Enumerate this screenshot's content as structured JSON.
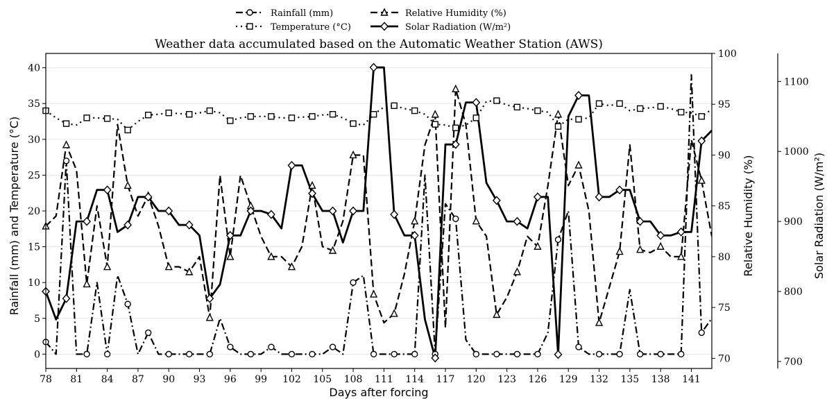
{
  "chart_data": {
    "type": "line",
    "title": "Weather data accumulated based on the Automatic Weather Station (AWS)",
    "xlabel": "Days after forcing",
    "ylabel_left": "Rainfall (mm) and Temperature (°C)",
    "ylabel_right1": "Relative Humidity (%)",
    "ylabel_right2": "Solar Radiation (W/m²)",
    "xlim": [
      78,
      143
    ],
    "x_ticks": [
      78,
      81,
      84,
      87,
      90,
      93,
      96,
      99,
      102,
      105,
      108,
      111,
      114,
      117,
      120,
      123,
      126,
      129,
      132,
      135,
      138,
      141
    ],
    "ylim_left": [
      -2,
      42
    ],
    "y_ticks_left": [
      0,
      5,
      10,
      15,
      20,
      25,
      30,
      35,
      40
    ],
    "ylim_rh": [
      69,
      100
    ],
    "y_ticks_rh": [
      70,
      75,
      80,
      85,
      90,
      95,
      100
    ],
    "ylim_sr": [
      690,
      1140
    ],
    "y_ticks_sr": [
      700,
      800,
      900,
      1000,
      1100
    ],
    "grid": "horizontal",
    "legend_position": "top-center",
    "series": [
      {
        "name": "Rainfall (mm)",
        "axis": "left",
        "style": "dashdot",
        "marker": "circle",
        "x": [
          78,
          79,
          80,
          81,
          82,
          83,
          84,
          85,
          86,
          87,
          88,
          89,
          90,
          91,
          92,
          93,
          94,
          95,
          96,
          97,
          98,
          99,
          100,
          101,
          102,
          103,
          104,
          105,
          106,
          107,
          108,
          109,
          110,
          111,
          112,
          113,
          114,
          115,
          116,
          117,
          118,
          119,
          120,
          121,
          122,
          123,
          124,
          125,
          126,
          127,
          128,
          129,
          130,
          131,
          132,
          133,
          134,
          135,
          136,
          137,
          138,
          139,
          140,
          141,
          142,
          143
        ],
        "values": [
          1.7,
          0,
          27,
          0,
          0,
          10,
          0,
          11,
          7,
          0,
          3,
          0,
          0,
          0,
          0,
          0,
          0,
          5,
          1,
          0,
          0,
          0,
          1,
          0,
          0,
          0,
          0,
          0,
          1,
          0,
          10,
          11,
          0,
          0,
          0,
          0,
          0,
          25,
          0,
          21,
          18.9,
          2,
          0,
          0,
          0,
          0,
          0,
          0,
          0,
          3,
          16,
          20,
          1,
          0,
          0,
          0,
          0,
          9,
          0,
          0,
          0,
          0,
          0,
          39,
          3,
          5
        ]
      },
      {
        "name": "Temperature (°C)",
        "axis": "left",
        "style": "dotted",
        "marker": "square",
        "x": [
          78,
          79,
          80,
          81,
          82,
          83,
          84,
          85,
          86,
          87,
          88,
          89,
          90,
          91,
          92,
          93,
          94,
          95,
          96,
          97,
          98,
          99,
          100,
          101,
          102,
          103,
          104,
          105,
          106,
          107,
          108,
          109,
          110,
          111,
          112,
          113,
          114,
          115,
          116,
          117,
          118,
          119,
          120,
          121,
          122,
          123,
          124,
          125,
          126,
          127,
          128,
          129,
          130,
          131,
          132,
          133,
          134,
          135,
          136,
          137,
          138,
          139,
          140,
          141,
          142,
          143
        ],
        "values": [
          34,
          33,
          32.2,
          32,
          33,
          33,
          32.9,
          32.8,
          31.3,
          32.5,
          33.4,
          33.5,
          33.7,
          33.6,
          33.5,
          33.7,
          34,
          33.7,
          32.6,
          33,
          33.2,
          33.2,
          33.2,
          33,
          33,
          33.1,
          33.2,
          33.4,
          33.5,
          33,
          32.2,
          32,
          33.5,
          34.5,
          34.7,
          34.3,
          34,
          33.5,
          32.1,
          32,
          31.6,
          32,
          33,
          35.3,
          35.4,
          34.8,
          34.5,
          34.3,
          34,
          33.8,
          31.8,
          32.8,
          32.8,
          33,
          35,
          34.7,
          35,
          34,
          34.3,
          34.4,
          34.6,
          34.3,
          33.8,
          33.7,
          33.2,
          34.2
        ]
      },
      {
        "name": "Relative Humidity (%)",
        "axis": "rh",
        "style": "dashed",
        "marker": "triangle",
        "x": [
          78,
          79,
          80,
          81,
          82,
          83,
          84,
          85,
          86,
          87,
          88,
          89,
          90,
          91,
          92,
          93,
          94,
          95,
          96,
          97,
          98,
          99,
          100,
          101,
          102,
          103,
          104,
          105,
          106,
          107,
          108,
          109,
          110,
          111,
          112,
          113,
          114,
          115,
          116,
          117,
          118,
          119,
          120,
          121,
          122,
          123,
          124,
          125,
          126,
          127,
          128,
          129,
          130,
          131,
          132,
          133,
          134,
          135,
          136,
          137,
          138,
          139,
          140,
          141,
          142,
          143
        ],
        "values": [
          83,
          84,
          91,
          88.5,
          77.3,
          85,
          79,
          93,
          87,
          84,
          86,
          83,
          79,
          79,
          78.5,
          80,
          74,
          88,
          80,
          88,
          85,
          82,
          80,
          80,
          79,
          81,
          87,
          81,
          80.6,
          83.5,
          90,
          90,
          76.3,
          73.5,
          74.4,
          78.3,
          83.5,
          91,
          94,
          73,
          96.5,
          93,
          83.5,
          82,
          74.3,
          76,
          78.5,
          82,
          81,
          87,
          94,
          87,
          89,
          84.5,
          73.5,
          77,
          80.5,
          91,
          80.7,
          80.4,
          81,
          80,
          80,
          91.5,
          87.5,
          82
        ]
      },
      {
        "name": "Solar Radiation (W/m²)",
        "axis": "sr",
        "style": "solid",
        "marker": "diamond",
        "x": [
          78,
          79,
          80,
          81,
          82,
          83,
          84,
          85,
          86,
          87,
          88,
          89,
          90,
          91,
          92,
          93,
          94,
          95,
          96,
          97,
          98,
          99,
          100,
          101,
          102,
          103,
          104,
          105,
          106,
          107,
          108,
          109,
          110,
          111,
          112,
          113,
          114,
          115,
          116,
          117,
          118,
          119,
          120,
          121,
          122,
          123,
          124,
          125,
          126,
          127,
          128,
          129,
          130,
          131,
          132,
          133,
          134,
          135,
          136,
          137,
          138,
          139,
          140,
          141,
          142,
          143
        ],
        "values": [
          800,
          760,
          790,
          900,
          900,
          945,
          945,
          885,
          895,
          935,
          935,
          915,
          915,
          895,
          895,
          880,
          790,
          810,
          880,
          880,
          915,
          915,
          910,
          890,
          980,
          980,
          940,
          915,
          915,
          870,
          915,
          915,
          1120,
          1120,
          910,
          880,
          880,
          760,
          705,
          1010,
          1010,
          1070,
          1070,
          955,
          930,
          900,
          900,
          890,
          935,
          935,
          710,
          1050,
          1080,
          1080,
          935,
          935,
          945,
          945,
          900,
          900,
          880,
          880,
          885,
          885,
          1015,
          1030
        ]
      }
    ]
  },
  "legend": {
    "items": [
      {
        "label": "Rainfall (mm)",
        "marker": "circle",
        "dash": "dashdot"
      },
      {
        "label": "Relative Humidity (%)",
        "marker": "triangle",
        "dash": "dashed"
      },
      {
        "label": "Temperature (°C)",
        "marker": "square",
        "dash": "dotted"
      },
      {
        "label": "Solar Radiation (W/m²)",
        "marker": "diamond",
        "dash": "solid"
      }
    ]
  },
  "colors": {
    "line": "#000000",
    "marker_fill": "#ffffff",
    "grid": "#e6e6e6",
    "background": "#ffffff"
  }
}
